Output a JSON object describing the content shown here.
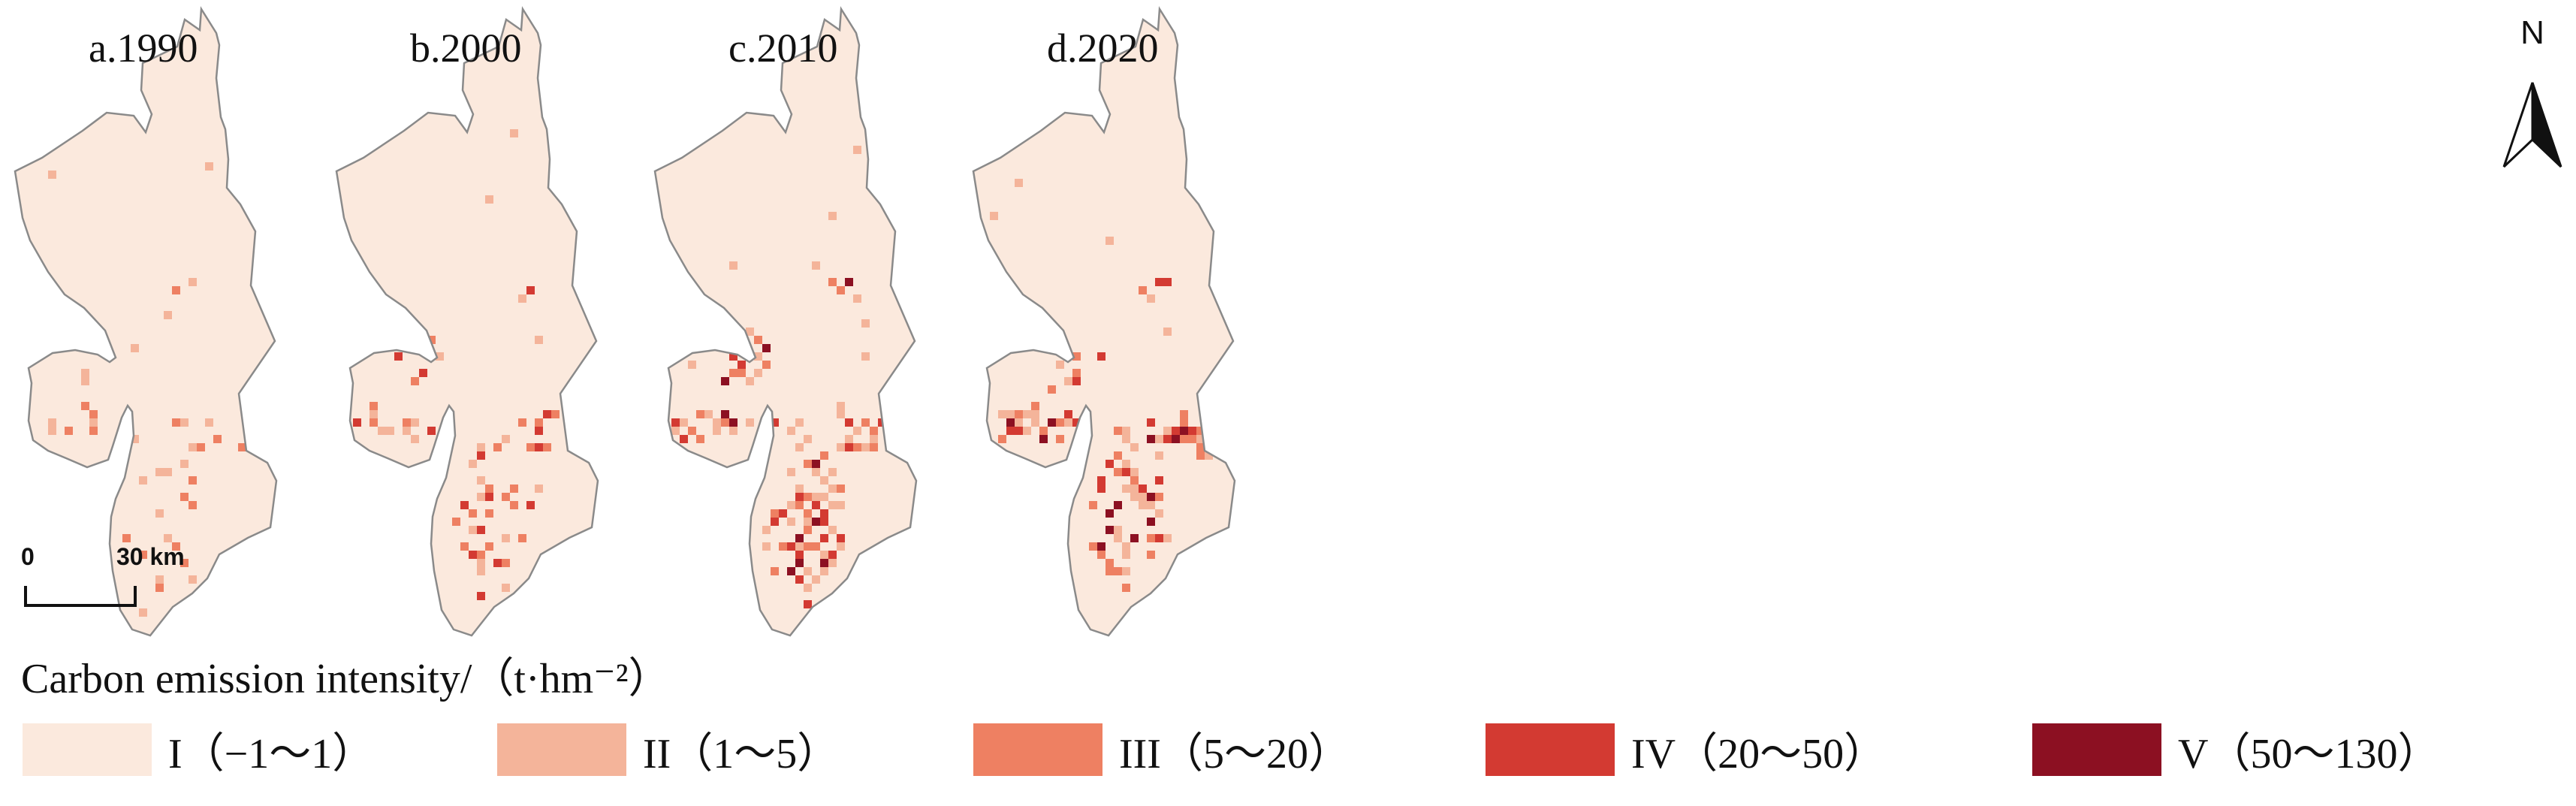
{
  "panels": [
    {
      "label": "a.1990",
      "year": 1990
    },
    {
      "label": "b.2000",
      "year": 2000
    },
    {
      "label": "c.2010",
      "year": 2010
    },
    {
      "label": "d.2020",
      "year": 2020
    }
  ],
  "north_arrow": {
    "letter": "N"
  },
  "scale_bar": {
    "zero": "0",
    "distance": "30 km"
  },
  "legend": {
    "title": "Carbon emission intensity/（t·hm⁻²）",
    "classes": [
      {
        "label": "I（−1～1）",
        "color": "#FBE9DD"
      },
      {
        "label": "II（1～5）",
        "color": "#F4B49A"
      },
      {
        "label": "III（5～20）",
        "color": "#EE8062"
      },
      {
        "label": "IV（20～50）",
        "color": "#D33A32"
      },
      {
        "label": "V（50～130）",
        "color": "#8C1022"
      }
    ]
  },
  "colors": {
    "boundary": "#8a8a8a",
    "base_fill": "#FBE9DD"
  }
}
